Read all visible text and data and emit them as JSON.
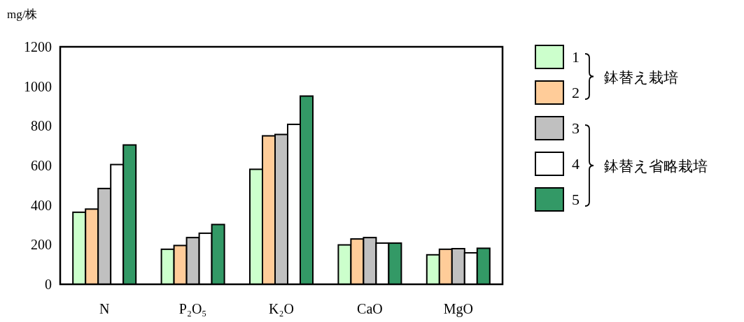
{
  "chart_data": {
    "type": "bar",
    "ylabel": "mg/株",
    "categories": [
      "N",
      "P₂O₅",
      "K₂O",
      "CaO",
      "MgO"
    ],
    "series": [
      {
        "name": "1",
        "color": "#ccffcc",
        "values": [
          364,
          177,
          581,
          199,
          149
        ]
      },
      {
        "name": "2",
        "color": "#ffcc99",
        "values": [
          380,
          196,
          750,
          229,
          177
        ]
      },
      {
        "name": "3",
        "color": "#c0c0c0",
        "values": [
          484,
          236,
          757,
          236,
          180
        ]
      },
      {
        "name": "4",
        "color": "#ffffff",
        "values": [
          605,
          258,
          808,
          208,
          159
        ]
      },
      {
        "name": "5",
        "color": "#339966",
        "values": [
          704,
          302,
          951,
          208,
          182
        ]
      }
    ],
    "ylim": [
      0,
      1200
    ],
    "yticks": [
      0,
      200,
      400,
      600,
      800,
      1000,
      1200
    ],
    "grid": false,
    "legend": "right",
    "annotations": [
      "鉢替え栽培",
      "鉢替え省略栽培"
    ]
  }
}
